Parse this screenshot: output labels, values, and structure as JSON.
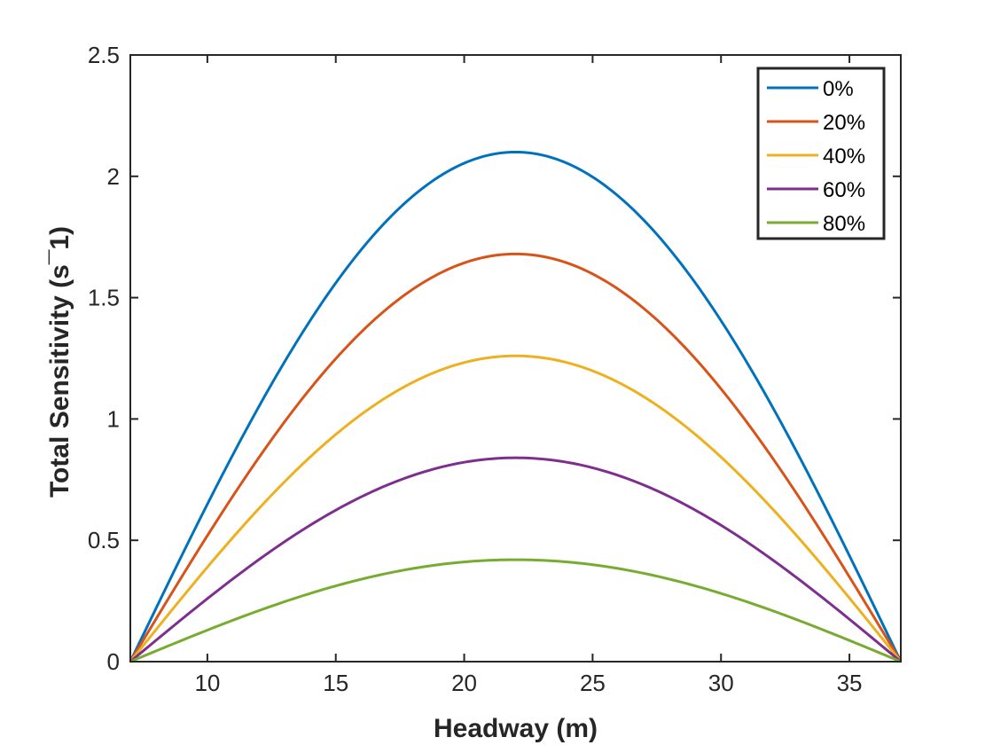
{
  "chart_data": {
    "type": "line",
    "title": "",
    "xlabel": "Headway (m)",
    "ylabel": "Total Sensitivity (s¯1)",
    "xlim": [
      7,
      37
    ],
    "ylim": [
      0,
      2.5
    ],
    "xticks": [
      10,
      15,
      20,
      25,
      30,
      35
    ],
    "yticks": [
      0,
      0.5,
      1,
      1.5,
      2,
      2.5
    ],
    "xtick_labels": [
      "10",
      "15",
      "20",
      "25",
      "30",
      "35"
    ],
    "ytick_labels": [
      "0",
      "0.5",
      "1",
      "1.5",
      "2",
      "2.5"
    ],
    "grid": false,
    "legend_location": "top-right",
    "curve_shape": "half-sine, zero at x=7 and x=37, peak at x=22",
    "series": [
      {
        "name": "0%",
        "color": "#0072BD",
        "peak_x": 22,
        "peak_y": 2.1
      },
      {
        "name": "20%",
        "color": "#D95319",
        "peak_x": 22,
        "peak_y": 1.68
      },
      {
        "name": "40%",
        "color": "#EDB120",
        "peak_x": 22,
        "peak_y": 1.26
      },
      {
        "name": "60%",
        "color": "#7E2F8E",
        "peak_x": 22,
        "peak_y": 0.84
      },
      {
        "name": "80%",
        "color": "#77AC30",
        "peak_x": 22,
        "peak_y": 0.42
      }
    ]
  }
}
